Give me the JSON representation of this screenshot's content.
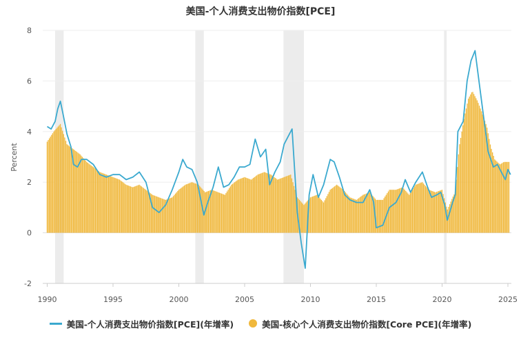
{
  "chart_data": {
    "type": "line",
    "title": "美国-个人消费支出物价指数[PCE]",
    "ylabel": "Percent",
    "xlabel": "",
    "xlim": [
      1990,
      2025.5
    ],
    "ylim": [
      -2,
      8
    ],
    "yticks": [
      -2,
      0,
      2,
      4,
      6,
      8
    ],
    "xticks": [
      1990,
      1995,
      2000,
      2005,
      2010,
      2015,
      2020,
      2025
    ],
    "grid": true,
    "legend_position": "bottom",
    "recessions": [
      [
        1990.6,
        1991.25
      ],
      [
        2001.25,
        2001.9
      ],
      [
        2007.95,
        2009.5
      ],
      [
        2020.15,
        2020.35
      ]
    ],
    "series": [
      {
        "name": "美国-个人消费支出物价指数[PCE](年增率)",
        "style": "line",
        "color": "#3aa9cf",
        "points": [
          [
            1990.0,
            4.2
          ],
          [
            1990.3,
            4.1
          ],
          [
            1990.6,
            4.4
          ],
          [
            1990.8,
            4.9
          ],
          [
            1991.0,
            5.2
          ],
          [
            1991.2,
            4.7
          ],
          [
            1991.5,
            3.9
          ],
          [
            1991.8,
            3.4
          ],
          [
            1992.0,
            2.7
          ],
          [
            1992.3,
            2.6
          ],
          [
            1992.6,
            2.9
          ],
          [
            1993.0,
            2.9
          ],
          [
            1993.5,
            2.7
          ],
          [
            1994.0,
            2.3
          ],
          [
            1994.5,
            2.2
          ],
          [
            1995.0,
            2.3
          ],
          [
            1995.5,
            2.3
          ],
          [
            1996.0,
            2.1
          ],
          [
            1996.5,
            2.2
          ],
          [
            1997.0,
            2.4
          ],
          [
            1997.5,
            2.0
          ],
          [
            1998.0,
            1.0
          ],
          [
            1998.5,
            0.8
          ],
          [
            1999.0,
            1.1
          ],
          [
            1999.5,
            1.7
          ],
          [
            2000.0,
            2.4
          ],
          [
            2000.3,
            2.9
          ],
          [
            2000.6,
            2.6
          ],
          [
            2001.0,
            2.5
          ],
          [
            2001.4,
            2.0
          ],
          [
            2001.9,
            0.7
          ],
          [
            2002.2,
            1.2
          ],
          [
            2002.6,
            1.8
          ],
          [
            2003.0,
            2.6
          ],
          [
            2003.4,
            1.8
          ],
          [
            2003.8,
            1.9
          ],
          [
            2004.2,
            2.2
          ],
          [
            2004.6,
            2.6
          ],
          [
            2005.0,
            2.6
          ],
          [
            2005.4,
            2.7
          ],
          [
            2005.8,
            3.7
          ],
          [
            2006.2,
            3.0
          ],
          [
            2006.6,
            3.3
          ],
          [
            2006.9,
            1.9
          ],
          [
            2007.3,
            2.4
          ],
          [
            2007.7,
            2.8
          ],
          [
            2008.0,
            3.5
          ],
          [
            2008.6,
            4.1
          ],
          [
            2009.0,
            0.8
          ],
          [
            2009.3,
            -0.4
          ],
          [
            2009.6,
            -1.4
          ],
          [
            2009.9,
            1.5
          ],
          [
            2010.2,
            2.3
          ],
          [
            2010.6,
            1.4
          ],
          [
            2011.0,
            1.9
          ],
          [
            2011.5,
            2.9
          ],
          [
            2011.8,
            2.8
          ],
          [
            2012.2,
            2.2
          ],
          [
            2012.6,
            1.5
          ],
          [
            2013.0,
            1.3
          ],
          [
            2013.5,
            1.2
          ],
          [
            2014.0,
            1.2
          ],
          [
            2014.5,
            1.7
          ],
          [
            2014.8,
            1.2
          ],
          [
            2015.0,
            0.2
          ],
          [
            2015.5,
            0.3
          ],
          [
            2016.0,
            1.0
          ],
          [
            2016.5,
            1.2
          ],
          [
            2016.9,
            1.6
          ],
          [
            2017.2,
            2.1
          ],
          [
            2017.6,
            1.6
          ],
          [
            2018.0,
            2.0
          ],
          [
            2018.5,
            2.4
          ],
          [
            2018.9,
            1.8
          ],
          [
            2019.2,
            1.4
          ],
          [
            2019.6,
            1.5
          ],
          [
            2019.9,
            1.6
          ],
          [
            2020.2,
            1.1
          ],
          [
            2020.4,
            0.5
          ],
          [
            2020.8,
            1.2
          ],
          [
            2021.0,
            1.5
          ],
          [
            2021.2,
            4.0
          ],
          [
            2021.6,
            4.4
          ],
          [
            2021.9,
            6.0
          ],
          [
            2022.2,
            6.8
          ],
          [
            2022.5,
            7.2
          ],
          [
            2022.9,
            5.6
          ],
          [
            2023.2,
            4.4
          ],
          [
            2023.5,
            3.2
          ],
          [
            2023.9,
            2.6
          ],
          [
            2024.2,
            2.7
          ],
          [
            2024.5,
            2.4
          ],
          [
            2024.8,
            2.1
          ],
          [
            2025.0,
            2.5
          ],
          [
            2025.2,
            2.3
          ]
        ]
      },
      {
        "name": "美国-核心个人消费支出物价指数[Core PCE](年增率)",
        "style": "bar",
        "color": "#f0b83c",
        "points": [
          [
            1990.0,
            3.6
          ],
          [
            1990.5,
            4.0
          ],
          [
            1991.0,
            4.3
          ],
          [
            1991.5,
            3.5
          ],
          [
            1992.0,
            3.3
          ],
          [
            1992.5,
            3.1
          ],
          [
            1993.0,
            2.8
          ],
          [
            1993.5,
            2.6
          ],
          [
            1994.0,
            2.4
          ],
          [
            1994.5,
            2.3
          ],
          [
            1995.0,
            2.2
          ],
          [
            1995.5,
            2.1
          ],
          [
            1996.0,
            1.9
          ],
          [
            1996.5,
            1.8
          ],
          [
            1997.0,
            1.9
          ],
          [
            1997.5,
            1.7
          ],
          [
            1998.0,
            1.5
          ],
          [
            1998.5,
            1.4
          ],
          [
            1999.0,
            1.3
          ],
          [
            1999.5,
            1.4
          ],
          [
            2000.0,
            1.7
          ],
          [
            2000.5,
            1.9
          ],
          [
            2001.0,
            2.0
          ],
          [
            2001.5,
            1.9
          ],
          [
            2002.0,
            1.6
          ],
          [
            2002.5,
            1.7
          ],
          [
            2003.0,
            1.6
          ],
          [
            2003.5,
            1.5
          ],
          [
            2004.0,
            1.9
          ],
          [
            2004.5,
            2.1
          ],
          [
            2005.0,
            2.2
          ],
          [
            2005.5,
            2.1
          ],
          [
            2006.0,
            2.3
          ],
          [
            2006.5,
            2.4
          ],
          [
            2007.0,
            2.3
          ],
          [
            2007.5,
            2.1
          ],
          [
            2008.0,
            2.2
          ],
          [
            2008.5,
            2.3
          ],
          [
            2009.0,
            1.4
          ],
          [
            2009.5,
            1.1
          ],
          [
            2010.0,
            1.4
          ],
          [
            2010.5,
            1.5
          ],
          [
            2011.0,
            1.2
          ],
          [
            2011.5,
            1.7
          ],
          [
            2012.0,
            1.9
          ],
          [
            2012.5,
            1.7
          ],
          [
            2013.0,
            1.4
          ],
          [
            2013.5,
            1.3
          ],
          [
            2014.0,
            1.5
          ],
          [
            2014.5,
            1.6
          ],
          [
            2015.0,
            1.3
          ],
          [
            2015.5,
            1.3
          ],
          [
            2016.0,
            1.7
          ],
          [
            2016.5,
            1.7
          ],
          [
            2017.0,
            1.8
          ],
          [
            2017.5,
            1.5
          ],
          [
            2018.0,
            1.9
          ],
          [
            2018.5,
            2.0
          ],
          [
            2019.0,
            1.7
          ],
          [
            2019.5,
            1.6
          ],
          [
            2020.0,
            1.7
          ],
          [
            2020.4,
            0.9
          ],
          [
            2020.8,
            1.4
          ],
          [
            2021.0,
            1.6
          ],
          [
            2021.3,
            3.4
          ],
          [
            2021.7,
            4.6
          ],
          [
            2022.0,
            5.3
          ],
          [
            2022.3,
            5.6
          ],
          [
            2022.7,
            5.2
          ],
          [
            2023.0,
            4.8
          ],
          [
            2023.4,
            4.2
          ],
          [
            2023.7,
            3.4
          ],
          [
            2024.0,
            2.9
          ],
          [
            2024.4,
            2.7
          ],
          [
            2024.7,
            2.8
          ],
          [
            2025.0,
            2.8
          ]
        ]
      }
    ]
  },
  "legend": {
    "pce_label": "美国-个人消费支出物价指数[PCE](年增率)",
    "core_label": "美国-核心个人消费支出物价指数[Core PCE](年增率)"
  }
}
